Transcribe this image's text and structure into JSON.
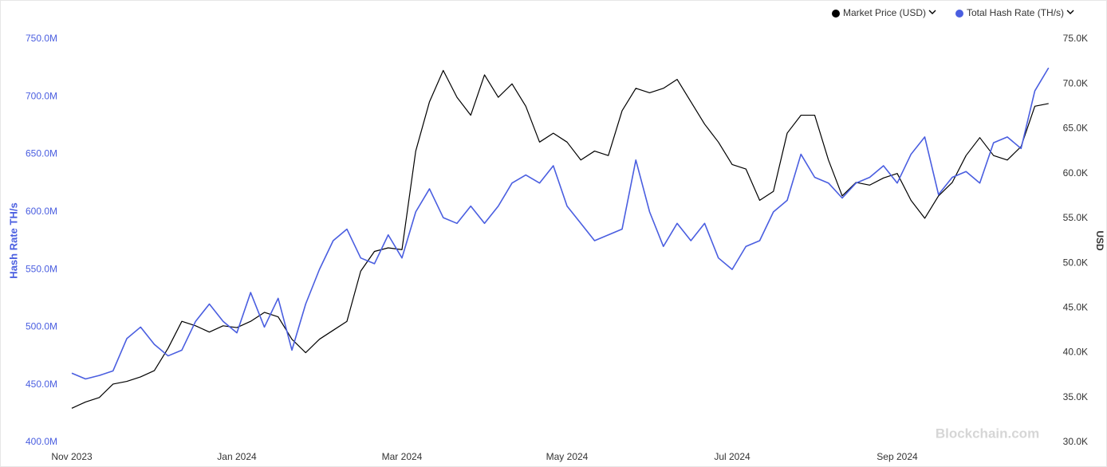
{
  "chart_data": {
    "type": "line",
    "categories": [
      "Nov 2023",
      null,
      null,
      null,
      null,
      null,
      null,
      null,
      null,
      null,
      null,
      null,
      "Jan 2024",
      null,
      null,
      null,
      null,
      null,
      null,
      null,
      null,
      null,
      null,
      null,
      "Mar 2024",
      null,
      null,
      null,
      null,
      null,
      null,
      null,
      null,
      null,
      null,
      null,
      "May 2024",
      null,
      null,
      null,
      null,
      null,
      null,
      null,
      null,
      null,
      null,
      null,
      "Jul 2024",
      null,
      null,
      null,
      null,
      null,
      null,
      null,
      null,
      null,
      null,
      null,
      "Sep 2024",
      null,
      null,
      null,
      null,
      null,
      null,
      null,
      null,
      null,
      null,
      null
    ],
    "series": [
      {
        "name": "Market Price (USD)",
        "color": "#000000",
        "axis": "y2",
        "values": [
          33.8,
          34.5,
          35.0,
          36.5,
          36.8,
          37.3,
          38.0,
          40.5,
          43.5,
          43.0,
          42.3,
          43.0,
          42.8,
          43.5,
          44.5,
          44.0,
          41.5,
          40.0,
          41.5,
          42.5,
          43.5,
          49.1,
          51.3,
          51.7,
          51.5,
          62.5,
          68.0,
          71.5,
          68.5,
          66.5,
          71.0,
          68.5,
          70.0,
          67.5,
          63.5,
          64.5,
          63.5,
          61.5,
          62.5,
          62.0,
          67.0,
          69.5,
          69.0,
          69.5,
          70.5,
          68.0,
          65.5,
          63.5,
          61.0,
          60.5,
          57.0,
          58.0,
          64.5,
          66.5,
          66.5,
          61.5,
          57.5,
          59.0,
          58.7,
          59.5,
          60.0,
          57.0,
          55.0,
          57.5,
          59.0,
          62.0,
          64.0,
          62.0,
          61.5,
          63.0,
          67.5,
          67.8
        ]
      },
      {
        "name": "Total Hash Rate (TH/s)",
        "color": "#4a5ee0",
        "values": [
          460,
          455,
          458,
          462,
          490,
          500,
          485,
          475,
          480,
          505,
          520,
          505,
          495,
          530,
          500,
          525,
          480,
          520,
          550,
          575,
          585,
          560,
          555,
          580,
          560,
          600,
          620,
          595,
          590,
          605,
          590,
          605,
          625,
          632,
          625,
          640,
          605,
          590,
          575,
          580,
          585,
          645,
          600,
          570,
          590,
          575,
          590,
          560,
          550,
          570,
          575,
          600,
          610,
          650,
          630,
          625,
          612,
          625,
          630,
          640,
          625,
          650,
          665,
          615,
          630,
          635,
          625,
          660,
          665,
          655,
          705,
          725
        ]
      }
    ],
    "y_label": "Hash Rate TH/s",
    "y2_label": "USD",
    "ylim": [
      400,
      750
    ],
    "yticks": [
      {
        "value": 400,
        "label": "400.0M"
      },
      {
        "value": 450,
        "label": "450.0M"
      },
      {
        "value": 500,
        "label": "500.0M"
      },
      {
        "value": 550,
        "label": "550.0M"
      },
      {
        "value": 600,
        "label": "600.0M"
      },
      {
        "value": 650,
        "label": "650.0M"
      },
      {
        "value": 700,
        "label": "700.0M"
      },
      {
        "value": 750,
        "label": "750.0M"
      }
    ],
    "y2lim": [
      30,
      75
    ],
    "y2ticks": [
      {
        "value": 30,
        "label": "30.0K"
      },
      {
        "value": 35,
        "label": "35.0K"
      },
      {
        "value": 40,
        "label": "40.0K"
      },
      {
        "value": 45,
        "label": "45.0K"
      },
      {
        "value": 50,
        "label": "50.0K"
      },
      {
        "value": 55,
        "label": "55.0K"
      },
      {
        "value": 60,
        "label": "60.0K"
      },
      {
        "value": 65,
        "label": "65.0K"
      },
      {
        "value": 70,
        "label": "70.0K"
      },
      {
        "value": 75,
        "label": "75.0K"
      }
    ],
    "grid": false,
    "legend": "top-right",
    "watermark": "Blockchain.com"
  }
}
